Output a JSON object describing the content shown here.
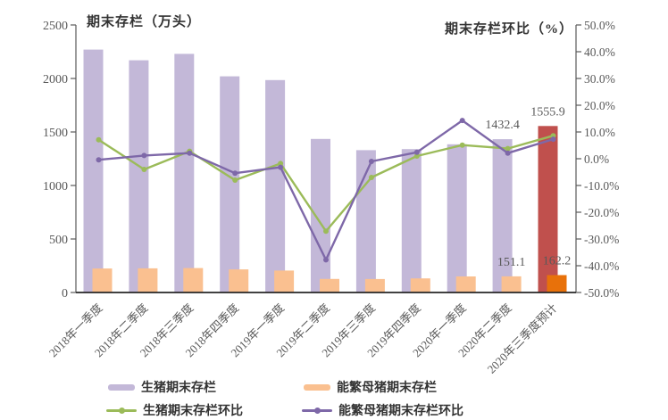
{
  "titles": {
    "left": "期末存栏（万头）",
    "right": "期末存栏环比（%）"
  },
  "colors": {
    "pig_bar": "#C3B8D8",
    "pig_bar_forecast": "#C0504D",
    "sow_bar": "#FAC090",
    "sow_bar_forecast": "#E8710A",
    "pig_line": "#9BBB59",
    "sow_line": "#7E68A8",
    "axis_text": "#595959",
    "axis_line": "#595959",
    "baseline": "#262626",
    "label_text": "#595959"
  },
  "chart_data": {
    "type": "bar",
    "subtype": "combo-bar-line",
    "title": "期末存栏（万头） / 期末存栏环比（%）",
    "xlabel": "",
    "ylabel_left": "期末存栏（万头）",
    "ylabel_right": "期末存栏环比（%）",
    "grid": false,
    "legend_position": "bottom",
    "categories": [
      "2018年一季度",
      "2018年二季度",
      "2018年三季度",
      "2018年四季度",
      "2019年一季度",
      "2019年二季度",
      "2019年三季度",
      "2019年四季度",
      "2020年一季度",
      "2020年二季度",
      "2020年三季度预计"
    ],
    "series": [
      {
        "name": "生猪期末存栏",
        "type": "bar",
        "axis": "left",
        "values": [
          2270,
          2170,
          2230,
          2020,
          1985,
          1435,
          1330,
          1340,
          1385,
          1432.4,
          1555.9
        ],
        "note": "last category drawn in forecast red"
      },
      {
        "name": "能繁母猪期末存栏",
        "type": "bar",
        "axis": "left",
        "values": [
          224,
          226,
          228,
          216,
          205,
          127,
          126,
          132,
          150,
          151.1,
          162.2
        ],
        "note": "last category drawn in forecast dark orange"
      },
      {
        "name": "生猪期末存栏环比",
        "type": "line",
        "axis": "right",
        "values": [
          7.1,
          -4.0,
          2.8,
          -8.0,
          -1.8,
          -27.1,
          -7.0,
          1.0,
          5.1,
          3.8,
          8.6
        ]
      },
      {
        "name": "能繁母猪期末存栏环比",
        "type": "line",
        "axis": "right",
        "values": [
          -0.4,
          1.2,
          2.1,
          -5.4,
          -3.2,
          -37.8,
          -1.0,
          2.4,
          14.3,
          2.1,
          7.3
        ]
      }
    ],
    "left_axis": {
      "min": 0,
      "max": 2500,
      "step": 500,
      "tick_labels": [
        "2500",
        "2000",
        "1500",
        "1000",
        "500",
        "0"
      ]
    },
    "right_axis": {
      "min": -50,
      "max": 50,
      "step": 10,
      "tick_labels": [
        "50.0%",
        "40.0%",
        "30.0%",
        "20.0%",
        "10.0%",
        "0.0%",
        "-10.0%",
        "-20.0%",
        "-30.0%",
        "-40.0%",
        "-50.0%"
      ]
    },
    "point_labels": [
      {
        "text": "1555.9",
        "series": 0,
        "index": 10
      },
      {
        "text": "1432.4",
        "series": 0,
        "index": 9
      },
      {
        "text": "151.1",
        "series": 1,
        "index": 9
      },
      {
        "text": "162.2",
        "series": 1,
        "index": 10
      }
    ]
  },
  "legend": {
    "items": [
      {
        "label": "生猪期末存栏",
        "swatch": "bar",
        "color_key": "pig_bar"
      },
      {
        "label": "能繁母猪期末存栏",
        "swatch": "bar",
        "color_key": "sow_bar"
      },
      {
        "label": "生猪期末存栏环比",
        "swatch": "line",
        "color_key": "pig_line"
      },
      {
        "label": "能繁母猪期末存栏环比",
        "swatch": "line",
        "color_key": "sow_line"
      }
    ]
  }
}
